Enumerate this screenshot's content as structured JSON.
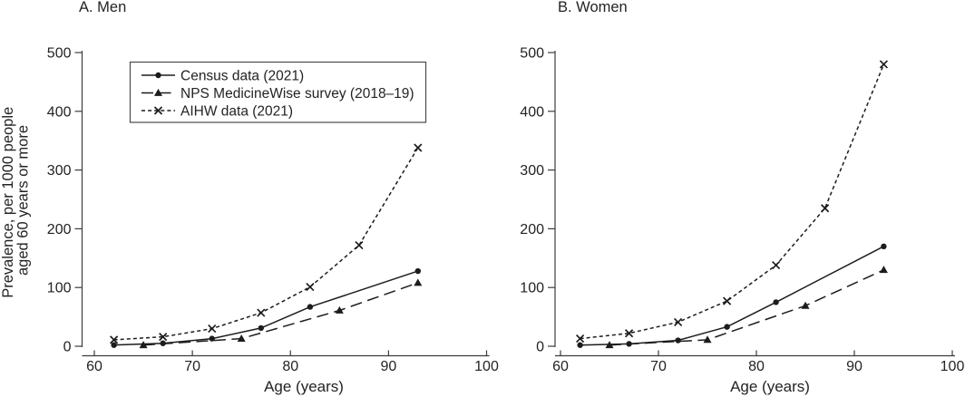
{
  "figure": {
    "ylabel_line1": "Prevalence, per 1000 people",
    "ylabel_line2": "aged 60 years or more",
    "xlabel": "Age (years)",
    "background": "#ffffff"
  },
  "style": {
    "ink": "#1c1c1c",
    "axis": "#3c3c3c",
    "text": "#232323",
    "legend_border": "#4a4a4a"
  },
  "legend": {
    "position": "top-left inside panel A",
    "items": [
      {
        "id": "census",
        "label": "Census data (2021)",
        "marker": "circle",
        "line": "solid"
      },
      {
        "id": "nps",
        "label": "NPS MedicineWise survey (2018–19)",
        "marker": "triangle",
        "line": "longdash"
      },
      {
        "id": "aihw",
        "label": "AIHW data (2021)",
        "marker": "x",
        "line": "shortdash"
      }
    ]
  },
  "chart_data": [
    {
      "type": "line",
      "title": "A. Men",
      "xlabel": "Age (years)",
      "ylabel": "Prevalence, per 1000 people aged 60 years or more",
      "xlim": [
        60,
        100
      ],
      "ylim": [
        0,
        500
      ],
      "xticks": [
        60,
        70,
        80,
        90,
        100
      ],
      "yticks": [
        0,
        100,
        200,
        300,
        400,
        500
      ],
      "grid": false,
      "series": [
        {
          "id": "census",
          "name": "Census data (2021)",
          "marker": "circle",
          "line": "solid",
          "points": [
            [
              62,
              2
            ],
            [
              67,
              5
            ],
            [
              72,
              13
            ],
            [
              77,
              31
            ],
            [
              82,
              67
            ],
            [
              93,
              128
            ]
          ]
        },
        {
          "id": "nps",
          "name": "NPS MedicineWise survey (2018–19)",
          "marker": "triangle",
          "line": "longdash",
          "points": [
            [
              65,
              2
            ],
            [
              75,
              13
            ],
            [
              85,
              61
            ],
            [
              93,
              108
            ]
          ]
        },
        {
          "id": "aihw",
          "name": "AIHW data (2021)",
          "marker": "x",
          "line": "shortdash",
          "points": [
            [
              62,
              11
            ],
            [
              67,
              16
            ],
            [
              72,
              30
            ],
            [
              77,
              57
            ],
            [
              82,
              101
            ],
            [
              87,
              172
            ],
            [
              93,
              338
            ]
          ]
        }
      ]
    },
    {
      "type": "line",
      "title": "B. Women",
      "xlabel": "Age (years)",
      "ylabel": "Prevalence, per 1000 people aged 60 years or more",
      "xlim": [
        60,
        100
      ],
      "ylim": [
        0,
        500
      ],
      "xticks": [
        60,
        70,
        80,
        90,
        100
      ],
      "yticks": [
        0,
        100,
        200,
        300,
        400,
        500
      ],
      "grid": false,
      "series": [
        {
          "id": "census",
          "name": "Census data (2021)",
          "marker": "circle",
          "line": "solid",
          "points": [
            [
              62,
              2
            ],
            [
              67,
              4
            ],
            [
              72,
              10
            ],
            [
              77,
              33
            ],
            [
              82,
              75
            ],
            [
              93,
              170
            ]
          ]
        },
        {
          "id": "nps",
          "name": "NPS MedicineWise survey (2018–19)",
          "marker": "triangle",
          "line": "longdash",
          "points": [
            [
              65,
              2
            ],
            [
              75,
              11
            ],
            [
              85,
              69
            ],
            [
              93,
              130
            ]
          ]
        },
        {
          "id": "aihw",
          "name": "AIHW data (2021)",
          "marker": "x",
          "line": "shortdash",
          "points": [
            [
              62,
              13
            ],
            [
              67,
              22
            ],
            [
              72,
              41
            ],
            [
              77,
              77
            ],
            [
              82,
              138
            ],
            [
              87,
              235
            ],
            [
              93,
              480
            ]
          ]
        }
      ]
    }
  ]
}
